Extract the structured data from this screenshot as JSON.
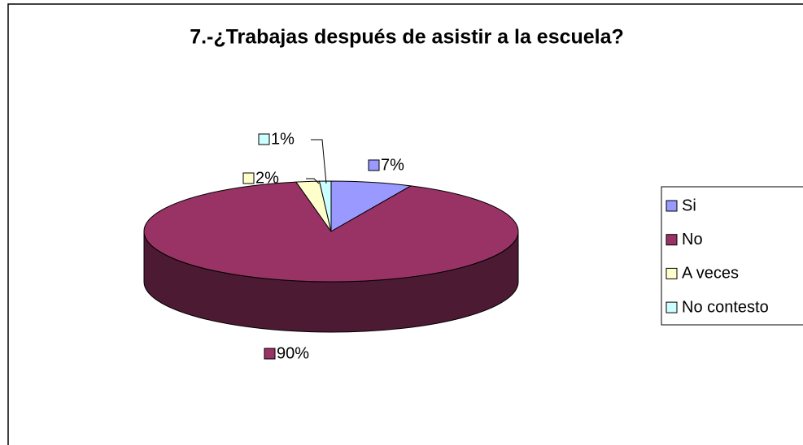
{
  "chart_data": {
    "type": "pie",
    "title": "7.-¿Trabajas después de asistir a la escuela?",
    "categories": [
      "Si",
      "No",
      "A veces",
      "No contesto"
    ],
    "values": [
      7,
      90,
      2,
      1
    ],
    "value_labels": [
      "7%",
      "90%",
      "2%",
      "1%"
    ],
    "colors": [
      "#9999ff",
      "#993366",
      "#ffffcc",
      "#ccffff"
    ],
    "legend": "right"
  }
}
